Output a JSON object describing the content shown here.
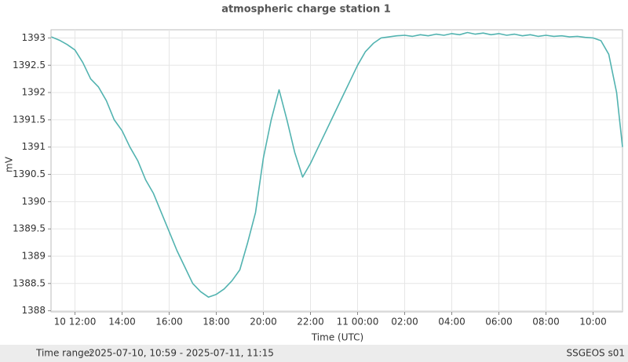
{
  "chart_data": {
    "type": "line",
    "title": "atmospheric charge station 1",
    "x_label": "Time (UTC)",
    "y_label": "mV",
    "color": "#52b3b0",
    "grid": true,
    "x": [
      "2025-07-10T11:00",
      "2025-07-10T11:20",
      "2025-07-10T11:40",
      "2025-07-10T12:00",
      "2025-07-10T12:20",
      "2025-07-10T12:40",
      "2025-07-10T13:00",
      "2025-07-10T13:20",
      "2025-07-10T13:40",
      "2025-07-10T14:00",
      "2025-07-10T14:20",
      "2025-07-10T14:40",
      "2025-07-10T15:00",
      "2025-07-10T15:20",
      "2025-07-10T15:40",
      "2025-07-10T16:00",
      "2025-07-10T16:20",
      "2025-07-10T16:40",
      "2025-07-10T17:00",
      "2025-07-10T17:20",
      "2025-07-10T17:40",
      "2025-07-10T18:00",
      "2025-07-10T18:20",
      "2025-07-10T18:40",
      "2025-07-10T19:00",
      "2025-07-10T19:20",
      "2025-07-10T19:40",
      "2025-07-10T20:00",
      "2025-07-10T20:20",
      "2025-07-10T20:40",
      "2025-07-10T21:00",
      "2025-07-10T21:20",
      "2025-07-10T21:40",
      "2025-07-10T22:00",
      "2025-07-10T22:20",
      "2025-07-10T22:40",
      "2025-07-10T23:00",
      "2025-07-10T23:20",
      "2025-07-10T23:40",
      "2025-07-11T00:00",
      "2025-07-11T00:20",
      "2025-07-11T00:40",
      "2025-07-11T01:00",
      "2025-07-11T01:20",
      "2025-07-11T01:40",
      "2025-07-11T02:00",
      "2025-07-11T02:20",
      "2025-07-11T02:40",
      "2025-07-11T03:00",
      "2025-07-11T03:20",
      "2025-07-11T03:40",
      "2025-07-11T04:00",
      "2025-07-11T04:20",
      "2025-07-11T04:40",
      "2025-07-11T05:00",
      "2025-07-11T05:20",
      "2025-07-11T05:40",
      "2025-07-11T06:00",
      "2025-07-11T06:20",
      "2025-07-11T06:40",
      "2025-07-11T07:00",
      "2025-07-11T07:20",
      "2025-07-11T07:40",
      "2025-07-11T08:00",
      "2025-07-11T08:20",
      "2025-07-11T08:40",
      "2025-07-11T09:00",
      "2025-07-11T09:20",
      "2025-07-11T09:40",
      "2025-07-11T10:00",
      "2025-07-11T10:20",
      "2025-07-11T10:40",
      "2025-07-11T11:00",
      "2025-07-11T11:15"
    ],
    "values": [
      1393.02,
      1392.96,
      1392.88,
      1392.78,
      1392.55,
      1392.25,
      1392.1,
      1391.85,
      1391.5,
      1391.3,
      1391.0,
      1390.75,
      1390.4,
      1390.15,
      1389.8,
      1389.45,
      1389.1,
      1388.8,
      1388.5,
      1388.35,
      1388.25,
      1388.3,
      1388.4,
      1388.55,
      1388.75,
      1389.25,
      1389.8,
      1390.8,
      1391.5,
      1392.05,
      1391.5,
      1390.9,
      1390.45,
      1390.7,
      1391.0,
      1391.3,
      1391.6,
      1391.9,
      1392.2,
      1392.5,
      1392.75,
      1392.9,
      1393.0,
      1393.02,
      1393.04,
      1393.05,
      1393.03,
      1393.06,
      1393.04,
      1393.07,
      1393.05,
      1393.08,
      1393.06,
      1393.1,
      1393.07,
      1393.09,
      1393.06,
      1393.08,
      1393.05,
      1393.07,
      1393.04,
      1393.06,
      1393.03,
      1393.05,
      1393.03,
      1393.04,
      1393.02,
      1393.03,
      1393.01,
      1393.0,
      1392.95,
      1392.7,
      1392.0,
      1391.0
    ],
    "xlim": [
      "2025-07-10T10:59",
      "2025-07-11T11:15"
    ],
    "xticks": [
      {
        "value": "2025-07-10T12:00",
        "label": "10 12:00"
      },
      {
        "value": "2025-07-10T14:00",
        "label": "14:00"
      },
      {
        "value": "2025-07-10T16:00",
        "label": "16:00"
      },
      {
        "value": "2025-07-10T18:00",
        "label": "18:00"
      },
      {
        "value": "2025-07-10T20:00",
        "label": "20:00"
      },
      {
        "value": "2025-07-10T22:00",
        "label": "22:00"
      },
      {
        "value": "2025-07-11T00:00",
        "label": "11 00:00"
      },
      {
        "value": "2025-07-11T02:00",
        "label": "02:00"
      },
      {
        "value": "2025-07-11T04:00",
        "label": "04:00"
      },
      {
        "value": "2025-07-11T06:00",
        "label": "06:00"
      },
      {
        "value": "2025-07-11T08:00",
        "label": "08:00"
      },
      {
        "value": "2025-07-11T10:00",
        "label": "10:00"
      }
    ],
    "ylim": [
      1387.98,
      1393.15
    ],
    "yticks": [
      1388,
      1388.5,
      1389,
      1389.5,
      1390,
      1390.5,
      1391,
      1391.5,
      1392,
      1392.5,
      1393
    ]
  },
  "footer": {
    "label": "Time range:",
    "range": "2025-07-10, 10:59 - 2025-07-11, 11:15",
    "station": "SSGEOS s01"
  }
}
